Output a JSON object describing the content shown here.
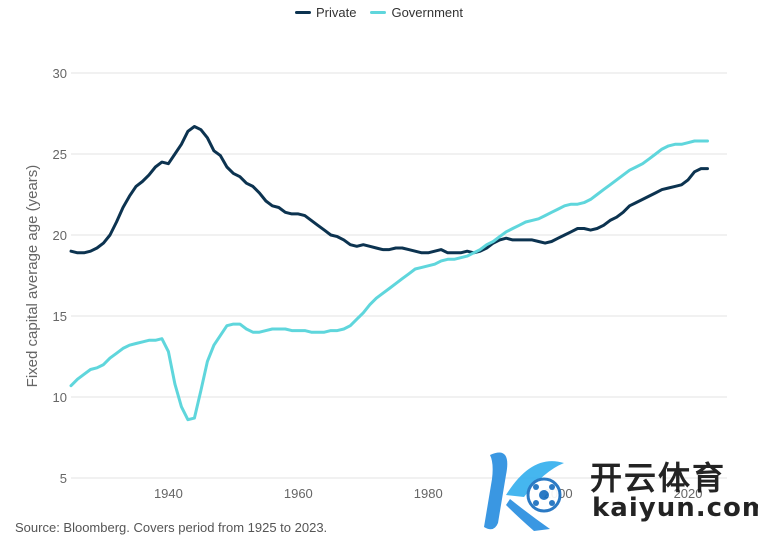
{
  "legend": {
    "private_label": "Private",
    "government_label": "Government"
  },
  "source": "Source: Bloomberg. Covers period from 1925 to 2023.",
  "watermark": {
    "brand_cn": "开云体育",
    "brand_en": "kaiyun.com"
  },
  "colors": {
    "private": "#0c3350",
    "government": "#5fd6dc",
    "grid": "#e3e3e3",
    "axis_text": "#666666"
  },
  "chart_data": {
    "type": "line",
    "title": "",
    "xlabel": "",
    "ylabel": "Fixed capital average age (years)",
    "xlim": [
      1925,
      2026
    ],
    "ylim": [
      5,
      30
    ],
    "xticks": [
      1940,
      1960,
      1980,
      2000,
      2020
    ],
    "yticks": [
      5,
      10,
      15,
      20,
      25,
      30
    ],
    "grid": "horizontal",
    "legend_position": "top-center",
    "series": [
      {
        "name": "Private",
        "x": [
          1925,
          1926,
          1927,
          1928,
          1929,
          1930,
          1931,
          1932,
          1933,
          1934,
          1935,
          1936,
          1937,
          1938,
          1939,
          1940,
          1941,
          1942,
          1943,
          1944,
          1945,
          1946,
          1947,
          1948,
          1949,
          1950,
          1951,
          1952,
          1953,
          1954,
          1955,
          1956,
          1957,
          1958,
          1959,
          1960,
          1961,
          1962,
          1963,
          1964,
          1965,
          1966,
          1967,
          1968,
          1969,
          1970,
          1971,
          1972,
          1973,
          1974,
          1975,
          1976,
          1977,
          1978,
          1979,
          1980,
          1981,
          1982,
          1983,
          1984,
          1985,
          1986,
          1987,
          1988,
          1989,
          1990,
          1991,
          1992,
          1993,
          1994,
          1995,
          1996,
          1997,
          1998,
          1999,
          2000,
          2001,
          2002,
          2003,
          2004,
          2005,
          2006,
          2007,
          2008,
          2009,
          2010,
          2011,
          2012,
          2013,
          2014,
          2015,
          2016,
          2017,
          2018,
          2019,
          2020,
          2021,
          2022,
          2023
        ],
        "values": [
          19.0,
          18.9,
          18.9,
          19.0,
          19.2,
          19.5,
          20.0,
          20.8,
          21.7,
          22.4,
          23.0,
          23.3,
          23.7,
          24.2,
          24.5,
          24.4,
          25.0,
          25.6,
          26.4,
          26.7,
          26.5,
          26.0,
          25.2,
          24.9,
          24.2,
          23.8,
          23.6,
          23.2,
          23.0,
          22.6,
          22.1,
          21.8,
          21.7,
          21.4,
          21.3,
          21.3,
          21.2,
          20.9,
          20.6,
          20.3,
          20.0,
          19.9,
          19.7,
          19.4,
          19.3,
          19.4,
          19.3,
          19.2,
          19.1,
          19.1,
          19.2,
          19.2,
          19.1,
          19.0,
          18.9,
          18.9,
          19.0,
          19.1,
          18.9,
          18.9,
          18.9,
          19.0,
          18.9,
          19.0,
          19.2,
          19.5,
          19.7,
          19.8,
          19.7,
          19.7,
          19.7,
          19.7,
          19.6,
          19.5,
          19.6,
          19.8,
          20.0,
          20.2,
          20.4,
          20.4,
          20.3,
          20.4,
          20.6,
          20.9,
          21.1,
          21.4,
          21.8,
          22.0,
          22.2,
          22.4,
          22.6,
          22.8,
          22.9,
          23.0,
          23.1,
          23.4,
          23.9,
          24.1,
          24.1
        ]
      },
      {
        "name": "Government",
        "x": [
          1925,
          1926,
          1927,
          1928,
          1929,
          1930,
          1931,
          1932,
          1933,
          1934,
          1935,
          1936,
          1937,
          1938,
          1939,
          1940,
          1941,
          1942,
          1943,
          1944,
          1945,
          1946,
          1947,
          1948,
          1949,
          1950,
          1951,
          1952,
          1953,
          1954,
          1955,
          1956,
          1957,
          1958,
          1959,
          1960,
          1961,
          1962,
          1963,
          1964,
          1965,
          1966,
          1967,
          1968,
          1969,
          1970,
          1971,
          1972,
          1973,
          1974,
          1975,
          1976,
          1977,
          1978,
          1979,
          1980,
          1981,
          1982,
          1983,
          1984,
          1985,
          1986,
          1987,
          1988,
          1989,
          1990,
          1991,
          1992,
          1993,
          1994,
          1995,
          1996,
          1997,
          1998,
          1999,
          2000,
          2001,
          2002,
          2003,
          2004,
          2005,
          2006,
          2007,
          2008,
          2009,
          2010,
          2011,
          2012,
          2013,
          2014,
          2015,
          2016,
          2017,
          2018,
          2019,
          2020,
          2021,
          2022,
          2023
        ],
        "values": [
          10.7,
          11.1,
          11.4,
          11.7,
          11.8,
          12.0,
          12.4,
          12.7,
          13.0,
          13.2,
          13.3,
          13.4,
          13.5,
          13.5,
          13.6,
          12.8,
          10.8,
          9.4,
          8.6,
          8.7,
          10.4,
          12.2,
          13.2,
          13.8,
          14.4,
          14.5,
          14.5,
          14.2,
          14.0,
          14.0,
          14.1,
          14.2,
          14.2,
          14.2,
          14.1,
          14.1,
          14.1,
          14.0,
          14.0,
          14.0,
          14.1,
          14.1,
          14.2,
          14.4,
          14.8,
          15.2,
          15.7,
          16.1,
          16.4,
          16.7,
          17.0,
          17.3,
          17.6,
          17.9,
          18.0,
          18.1,
          18.2,
          18.4,
          18.5,
          18.5,
          18.6,
          18.7,
          18.9,
          19.1,
          19.4,
          19.6,
          19.9,
          20.2,
          20.4,
          20.6,
          20.8,
          20.9,
          21.0,
          21.2,
          21.4,
          21.6,
          21.8,
          21.9,
          21.9,
          22.0,
          22.2,
          22.5,
          22.8,
          23.1,
          23.4,
          23.7,
          24.0,
          24.2,
          24.4,
          24.7,
          25.0,
          25.3,
          25.5,
          25.6,
          25.6,
          25.7,
          25.8,
          25.8,
          25.8
        ]
      }
    ]
  }
}
